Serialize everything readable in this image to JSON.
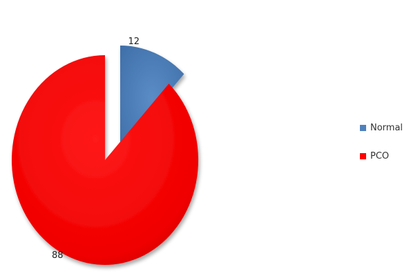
{
  "chart_data": {
    "type": "pie",
    "title": "",
    "categories": [
      "Normal",
      "PCO"
    ],
    "values": [
      12,
      88
    ],
    "data_labels": [
      "12",
      "88"
    ],
    "exploded": [
      "Normal"
    ],
    "colors": [
      "#4F81BD",
      "#FF0000"
    ],
    "legend_position": "right",
    "grid": false
  },
  "legend": {
    "items": [
      {
        "label": "Normal",
        "color": "#4F81BD"
      },
      {
        "label": "PCO",
        "color": "#FF0000"
      }
    ]
  }
}
